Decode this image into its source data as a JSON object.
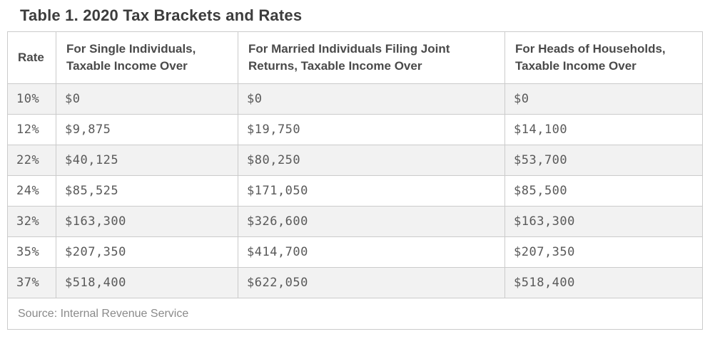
{
  "title": "Table 1. 2020 Tax Brackets and Rates",
  "chart_data": {
    "type": "table",
    "title": "Table 1. 2020 Tax Brackets and Rates",
    "columns": [
      "Rate",
      "For Single Individuals, Taxable Income Over",
      "For Married Individuals Filing Joint Returns, Taxable Income Over",
      "For Heads of Households, Taxable Income Over"
    ],
    "rows": [
      [
        "10%",
        "$0",
        "$0",
        "$0"
      ],
      [
        "12%",
        "$9,875",
        "$19,750",
        "$14,100"
      ],
      [
        "22%",
        "$40,125",
        "$80,250",
        "$53,700"
      ],
      [
        "24%",
        "$85,525",
        "$171,050",
        "$85,500"
      ],
      [
        "32%",
        "$163,300",
        "$326,600",
        "$163,300"
      ],
      [
        "35%",
        "$207,350",
        "$414,700",
        "$207,350"
      ],
      [
        "37%",
        "$518,400",
        "$622,050",
        "$518,400"
      ]
    ],
    "source": "Source: Internal Revenue Service",
    "striped_row_indexes": [
      0,
      2,
      4,
      6
    ]
  },
  "colors": {
    "title_text": "#3d3d3d",
    "header_text": "#4a4a4a",
    "cell_text": "#595959",
    "source_text": "#8a8a8a",
    "stripe_background": "#f2f2f2",
    "border": "#cbcbcb",
    "page_background": "#ffffff"
  }
}
